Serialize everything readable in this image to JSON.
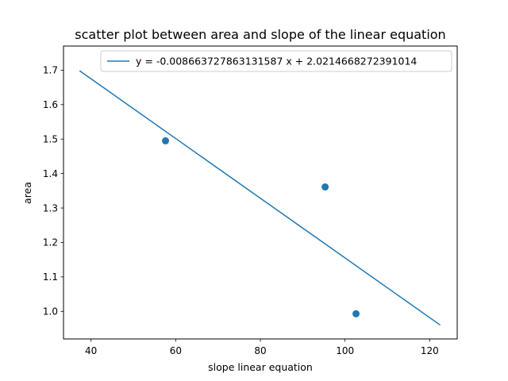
{
  "chart_data": {
    "type": "scatter",
    "title": "scatter plot between area and slope of the linear equation",
    "xlabel": "slope linear equation",
    "ylabel": "area",
    "xlim": [
      33.5,
      126.5
    ],
    "ylim": [
      0.92,
      1.77
    ],
    "xticks": [
      40,
      60,
      80,
      100,
      120
    ],
    "yticks": [
      1.0,
      1.1,
      1.2,
      1.3,
      1.4,
      1.5,
      1.6,
      1.7
    ],
    "xtick_labels": [
      "40",
      "60",
      "80",
      "100",
      "120"
    ],
    "ytick_labels": [
      "1.0",
      "1.1",
      "1.2",
      "1.3",
      "1.4",
      "1.5",
      "1.6",
      "1.7"
    ],
    "grid": false,
    "legend_position": "top-right",
    "points": [
      {
        "x": 57.6,
        "y": 1.495
      },
      {
        "x": 95.3,
        "y": 1.361
      },
      {
        "x": 102.6,
        "y": 0.993
      }
    ],
    "line": {
      "label": "y = -0.008663727863131587 x + 2.0214668272391014",
      "slope": -0.008663727863131587,
      "intercept": 2.0214668272391014,
      "x_start": 37.3,
      "x_end": 122.5
    },
    "color": "#1f77b4"
  }
}
